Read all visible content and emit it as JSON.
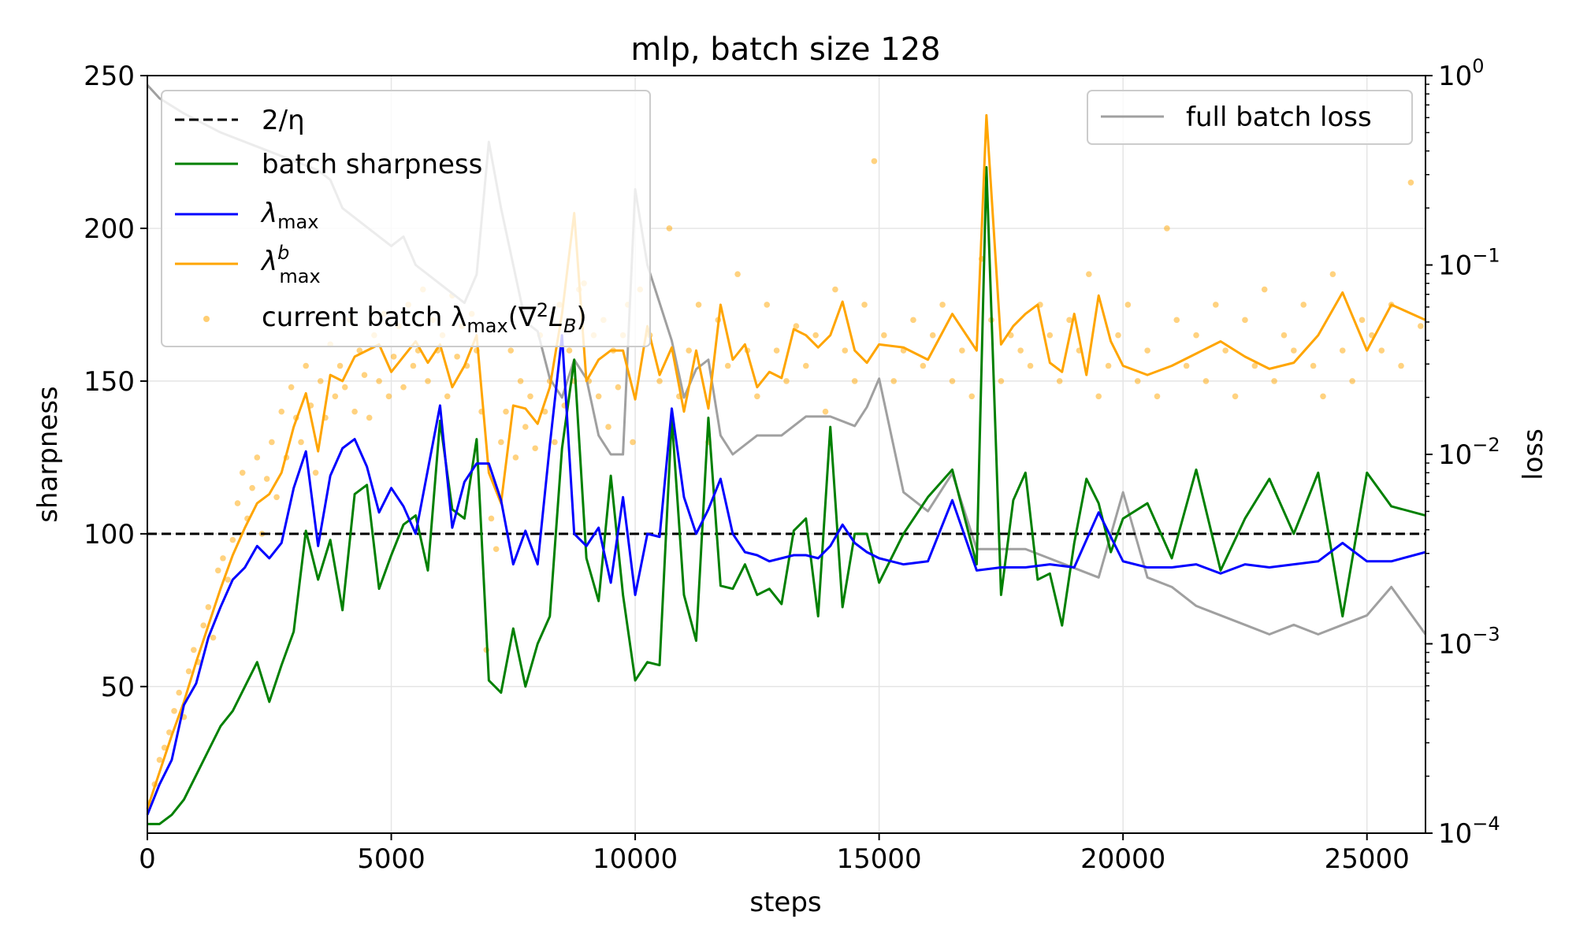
{
  "chart_data": {
    "type": "line",
    "title": "mlp, batch size 128",
    "xlabel": "steps",
    "ylabel": "sharpness",
    "y2label": "loss",
    "xlim": [
      0,
      26200
    ],
    "ylim": [
      2,
      250
    ],
    "y2lim_log10": [
      -4,
      0
    ],
    "grid": true,
    "x_ticks": [
      0,
      5000,
      10000,
      15000,
      20000,
      25000
    ],
    "x_tick_labels": [
      "0",
      "5000",
      "10000",
      "15000",
      "20000",
      "25000"
    ],
    "y_ticks": [
      50,
      100,
      150,
      200,
      250
    ],
    "y_tick_labels": [
      "50",
      "100",
      "150",
      "200",
      "250"
    ],
    "y2_ticks": [
      {
        "exp": 0,
        "base": "10",
        "sup": "0"
      },
      {
        "exp": -1,
        "base": "10",
        "sup": "−1"
      },
      {
        "exp": -2,
        "base": "10",
        "sup": "−2"
      },
      {
        "exp": -3,
        "base": "10",
        "sup": "−3"
      },
      {
        "exp": -4,
        "base": "10",
        "sup": "−4"
      }
    ],
    "legend_left": [
      {
        "key": "two_over_eta",
        "label": "2/η",
        "color": "#000000",
        "style": "dashed"
      },
      {
        "key": "batch_sharpness",
        "label": "batch sharpness",
        "color": "#008000",
        "style": "solid"
      },
      {
        "key": "lambda_max",
        "label_main": "λ",
        "label_sub": "max",
        "color": "#0000ff",
        "style": "solid"
      },
      {
        "key": "lambda_b_max",
        "label_main": "λ",
        "label_sub": "max",
        "label_sup": "b",
        "color": "#ffa500",
        "style": "solid"
      },
      {
        "key": "current_batch",
        "label_pre": "current batch λ",
        "label_sub": "max",
        "label_post": "(∇",
        "label_sup": "2",
        "label_post2": "L",
        "label_sub2": "B",
        "label_end": ")",
        "color": "#ffa500",
        "style": "dots"
      }
    ],
    "legend_right": [
      {
        "key": "full_batch_loss",
        "label": "full batch loss",
        "color": "#a0a0a0",
        "style": "solid"
      }
    ],
    "two_over_eta": 100,
    "series": {
      "lambda_max": {
        "name": "λmax",
        "color": "#0000ff",
        "x": [
          0,
          250,
          500,
          750,
          1000,
          1250,
          1500,
          1750,
          2000,
          2250,
          2500,
          2750,
          3000,
          3250,
          3500,
          3750,
          4000,
          4250,
          4500,
          4750,
          5000,
          5250,
          5500,
          5750,
          6000,
          6250,
          6500,
          6750,
          7000,
          7250,
          7500,
          7750,
          8000,
          8250,
          8500,
          8750,
          9000,
          9250,
          9500,
          9750,
          10000,
          10250,
          10500,
          10750,
          11000,
          11250,
          11500,
          11750,
          12000,
          12250,
          12500,
          12750,
          13000,
          13250,
          13500,
          13750,
          14000,
          14250,
          14500,
          14750,
          15000,
          15500,
          16000,
          16500,
          17000,
          17500,
          18000,
          18500,
          19000,
          19500,
          20000,
          20500,
          21000,
          21500,
          22000,
          22500,
          23000,
          23500,
          24000,
          24500,
          25000,
          25500,
          26200
        ],
        "y": [
          8,
          18,
          26,
          44,
          51,
          66,
          76,
          85,
          89,
          96,
          92,
          97,
          115,
          127,
          96,
          119,
          128,
          131,
          122,
          107,
          115,
          109,
          100,
          121,
          142,
          102,
          117,
          123,
          123,
          111,
          90,
          101,
          90,
          129,
          165,
          100,
          96,
          102,
          84,
          112,
          80,
          100,
          99,
          141,
          112,
          100,
          108,
          118,
          100,
          94,
          93,
          91,
          92,
          93,
          93,
          92,
          96,
          103,
          97,
          94,
          92,
          90,
          91,
          111,
          88,
          89,
          89,
          90,
          89,
          107,
          91,
          89,
          89,
          90,
          87,
          90,
          89,
          90,
          91,
          97,
          91,
          91,
          94
        ]
      },
      "lambda_b_max": {
        "name": "λbmax",
        "color": "#ffa500",
        "x": [
          0,
          250,
          500,
          750,
          1000,
          1250,
          1500,
          1750,
          2000,
          2250,
          2500,
          2750,
          3000,
          3250,
          3500,
          3750,
          4000,
          4250,
          4500,
          4750,
          5000,
          5250,
          5500,
          5750,
          6000,
          6250,
          6500,
          6750,
          7000,
          7250,
          7500,
          7750,
          8000,
          8250,
          8500,
          8750,
          9000,
          9250,
          9500,
          9750,
          10000,
          10250,
          10500,
          10750,
          11000,
          11250,
          11500,
          11750,
          12000,
          12250,
          12500,
          12750,
          13000,
          13250,
          13500,
          13750,
          14000,
          14250,
          14500,
          14750,
          15000,
          15500,
          16000,
          16500,
          17000,
          17200,
          17500,
          17750,
          18000,
          18250,
          18500,
          18750,
          19000,
          19250,
          19500,
          19750,
          20000,
          20500,
          21000,
          21500,
          22000,
          22500,
          23000,
          23500,
          24000,
          24500,
          25000,
          25500,
          26200
        ],
        "y": [
          10,
          22,
          34,
          45,
          58,
          70,
          82,
          93,
          102,
          110,
          113,
          120,
          135,
          146,
          127,
          152,
          150,
          158,
          160,
          162,
          153,
          158,
          163,
          156,
          162,
          148,
          155,
          165,
          120,
          110,
          142,
          141,
          136,
          148,
          172,
          205,
          150,
          157,
          160,
          160,
          144,
          168,
          152,
          161,
          140,
          160,
          141,
          175,
          157,
          162,
          148,
          153,
          151,
          167,
          165,
          161,
          165,
          176,
          160,
          156,
          162,
          161,
          157,
          172,
          160,
          237,
          162,
          168,
          172,
          175,
          156,
          153,
          172,
          152,
          178,
          163,
          155,
          152,
          155,
          159,
          163,
          158,
          154,
          156,
          165,
          179,
          160,
          175,
          170
        ]
      },
      "batch_sharpness": {
        "name": "batch sharpness",
        "color": "#008000",
        "x": [
          0,
          250,
          500,
          750,
          1000,
          1250,
          1500,
          1750,
          2000,
          2250,
          2500,
          2750,
          3000,
          3250,
          3500,
          3750,
          4000,
          4250,
          4500,
          4750,
          5000,
          5250,
          5500,
          5750,
          6000,
          6250,
          6500,
          6750,
          7000,
          7250,
          7500,
          7750,
          8000,
          8250,
          8500,
          8750,
          9000,
          9250,
          9500,
          9750,
          10000,
          10250,
          10500,
          10750,
          11000,
          11250,
          11500,
          11750,
          12000,
          12250,
          12500,
          12750,
          13000,
          13250,
          13500,
          13750,
          14000,
          14250,
          14500,
          14750,
          15000,
          15500,
          16000,
          16500,
          17000,
          17200,
          17500,
          17750,
          18000,
          18250,
          18500,
          18750,
          19000,
          19250,
          19500,
          19750,
          20000,
          20500,
          21000,
          21500,
          22000,
          22500,
          23000,
          23500,
          24000,
          24500,
          25000,
          25500,
          26200
        ],
        "y": [
          5,
          5,
          8,
          13,
          21,
          29,
          37,
          42,
          50,
          58,
          45,
          57,
          68,
          101,
          85,
          98,
          75,
          113,
          116,
          82,
          93,
          103,
          106,
          88,
          137,
          108,
          105,
          131,
          52,
          48,
          69,
          50,
          64,
          73,
          128,
          157,
          92,
          78,
          119,
          80,
          52,
          58,
          57,
          138,
          80,
          65,
          138,
          83,
          82,
          90,
          80,
          82,
          77,
          101,
          105,
          73,
          135,
          76,
          100,
          100,
          84,
          100,
          112,
          121,
          90,
          220,
          80,
          111,
          120,
          85,
          87,
          70,
          97,
          118,
          110,
          94,
          105,
          110,
          92,
          121,
          88,
          105,
          118,
          100,
          120,
          73,
          120,
          109,
          106
        ]
      },
      "full_batch_loss": {
        "name": "full batch loss",
        "color": "#a0a0a0",
        "axis": "y2",
        "x": [
          0,
          250,
          750,
          1500,
          2000,
          2500,
          3000,
          3500,
          3750,
          4000,
          4500,
          5000,
          5250,
          5500,
          6000,
          6500,
          6750,
          7000,
          7250,
          7500,
          7750,
          8000,
          8250,
          8500,
          8750,
          9000,
          9250,
          9500,
          9750,
          10000,
          10250,
          10500,
          10750,
          11000,
          11250,
          11500,
          11750,
          12000,
          12500,
          13000,
          13500,
          14000,
          14500,
          14750,
          15000,
          15500,
          16000,
          16500,
          17000,
          17500,
          18000,
          18500,
          19000,
          19500,
          20000,
          20500,
          21000,
          21500,
          22000,
          22500,
          23000,
          23500,
          24000,
          24500,
          25000,
          25500,
          26200
        ],
        "log10_y": [
          -0.05,
          -0.12,
          -0.2,
          -0.3,
          -0.35,
          -0.4,
          -0.45,
          -0.5,
          -0.55,
          -0.7,
          -0.8,
          -0.9,
          -0.85,
          -1.0,
          -1.1,
          -1.2,
          -1.05,
          -0.35,
          -0.7,
          -1.0,
          -1.3,
          -1.35,
          -1.6,
          -1.7,
          -1.5,
          -1.6,
          -1.9,
          -2.0,
          -2.0,
          -0.6,
          -1.0,
          -1.2,
          -1.4,
          -1.7,
          -1.55,
          -1.5,
          -1.9,
          -2.0,
          -1.9,
          -1.9,
          -1.8,
          -1.8,
          -1.85,
          -1.75,
          -1.6,
          -2.2,
          -2.3,
          -2.1,
          -2.5,
          -2.5,
          -2.5,
          -2.55,
          -2.6,
          -2.65,
          -2.2,
          -2.65,
          -2.7,
          -2.8,
          -2.85,
          -2.9,
          -2.95,
          -2.9,
          -2.95,
          -2.9,
          -2.85,
          -2.7,
          -2.95
        ]
      }
    },
    "current_batch_scatter": {
      "color": "#ffa500",
      "x": [
        50,
        150,
        250,
        350,
        450,
        550,
        650,
        750,
        850,
        950,
        1050,
        1150,
        1250,
        1350,
        1450,
        1550,
        1650,
        1750,
        1850,
        1950,
        2050,
        2150,
        2250,
        2350,
        2450,
        2550,
        2650,
        2750,
        2850,
        2950,
        3050,
        3150,
        3250,
        3350,
        3450,
        3550,
        3650,
        3750,
        3850,
        3950,
        4050,
        4150,
        4250,
        4350,
        4450,
        4550,
        4650,
        4750,
        4850,
        4950,
        5050,
        5150,
        5250,
        5350,
        5450,
        5550,
        5650,
        5750,
        5850,
        5950,
        6050,
        6150,
        6250,
        6350,
        6450,
        6550,
        6650,
        6750,
        6850,
        6950,
        7050,
        7150,
        7250,
        7350,
        7450,
        7550,
        7650,
        7750,
        7850,
        7950,
        8050,
        8150,
        8250,
        8350,
        8450,
        8550,
        8650,
        8750,
        8850,
        8950,
        9050,
        9150,
        9250,
        9350,
        9450,
        9550,
        9650,
        9750,
        9850,
        9950,
        10100,
        10300,
        10500,
        10700,
        10900,
        11100,
        11300,
        11500,
        11700,
        11900,
        12100,
        12300,
        12500,
        12700,
        12900,
        13100,
        13300,
        13500,
        13700,
        13900,
        14100,
        14300,
        14500,
        14700,
        14900,
        15100,
        15300,
        15500,
        15700,
        15900,
        16100,
        16300,
        16500,
        16700,
        16900,
        17100,
        17300,
        17500,
        17700,
        17900,
        18100,
        18300,
        18500,
        18700,
        18900,
        19100,
        19300,
        19500,
        19700,
        19900,
        20100,
        20300,
        20500,
        20700,
        20900,
        21100,
        21300,
        21500,
        21700,
        21900,
        22100,
        22300,
        22500,
        22700,
        22900,
        23100,
        23300,
        23500,
        23700,
        23900,
        24100,
        24300,
        24500,
        24700,
        24900,
        25100,
        25300,
        25500,
        25700,
        25900,
        26100
      ],
      "y": [
        12,
        18,
        26,
        30,
        35,
        42,
        48,
        40,
        55,
        62,
        58,
        70,
        76,
        66,
        88,
        92,
        85,
        98,
        110,
        120,
        105,
        115,
        125,
        100,
        118,
        130,
        112,
        140,
        125,
        148,
        138,
        130,
        155,
        142,
        120,
        150,
        138,
        162,
        145,
        155,
        148,
        170,
        140,
        160,
        152,
        138,
        165,
        150,
        172,
        145,
        158,
        168,
        148,
        175,
        155,
        160,
        180,
        150,
        170,
        160,
        165,
        145,
        178,
        158,
        168,
        155,
        172,
        160,
        140,
        62,
        105,
        95,
        130,
        140,
        160,
        125,
        150,
        135,
        145,
        128,
        165,
        140,
        150,
        130,
        175,
        142,
        160,
        150,
        180,
        182,
        150,
        165,
        145,
        170,
        135,
        160,
        148,
        165,
        175,
        130,
        180,
        165,
        150,
        200,
        145,
        160,
        175,
        130,
        170,
        155,
        185,
        160,
        145,
        175,
        160,
        150,
        168,
        155,
        165,
        140,
        180,
        160,
        150,
        175,
        222,
        165,
        150,
        160,
        170,
        155,
        165,
        175,
        150,
        160,
        145,
        190,
        170,
        150,
        165,
        160,
        155,
        175,
        165,
        150,
        170,
        160,
        185,
        145,
        155,
        165,
        175,
        150,
        160,
        145,
        200,
        170,
        155,
        165,
        150,
        175,
        160,
        145,
        170,
        155,
        180,
        150,
        165,
        160,
        175,
        155,
        145,
        185,
        160,
        150,
        170,
        165,
        160,
        175,
        155,
        215,
        168
      ]
    }
  }
}
